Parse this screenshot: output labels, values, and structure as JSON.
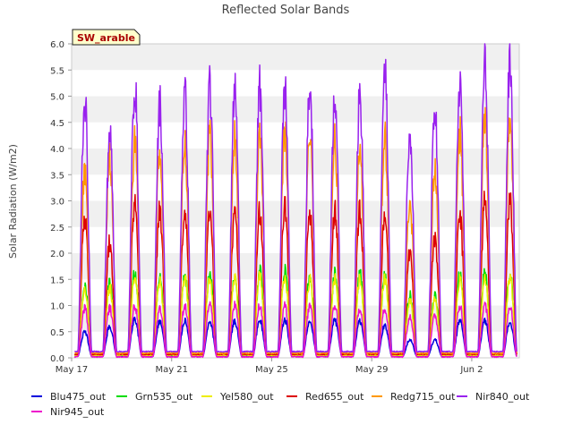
{
  "chart_data": {
    "type": "line",
    "title": "Reflected Solar Bands",
    "badge": "SW_arable",
    "ylabel": "Solar Radiation (W/m2)",
    "xlabel": "",
    "ylim": [
      0,
      6
    ],
    "yticks": [
      "0.0",
      "0.5",
      "1.0",
      "1.5",
      "2.0",
      "2.5",
      "3.0",
      "3.5",
      "4.0",
      "4.5",
      "5.0",
      "5.5",
      "6.0"
    ],
    "xticks": [
      {
        "label": "May 17",
        "day": 0
      },
      {
        "label": "May 21",
        "day": 4
      },
      {
        "label": "May 25",
        "day": 8
      },
      {
        "label": "May 29",
        "day": 12
      },
      {
        "label": "Jun 2",
        "day": 16
      }
    ],
    "x_range_days": [
      0,
      17.9
    ],
    "grid": "horizontal bands",
    "legend_position": "bottom",
    "series": [
      {
        "name": "Blu475_out",
        "color": "#0000dd"
      },
      {
        "name": "Grn535_out",
        "color": "#00dd00"
      },
      {
        "name": "Yel580_out",
        "color": "#eeee00"
      },
      {
        "name": "Red655_out",
        "color": "#dd0000"
      },
      {
        "name": "Redg715_out",
        "color": "#ff9900"
      },
      {
        "name": "Nir840_out",
        "color": "#9922ee"
      },
      {
        "name": "Nir945_out",
        "color": "#ee11cc"
      }
    ],
    "daily_peaks": {
      "days": [
        0.5,
        1.5,
        2.5,
        3.5,
        4.5,
        5.5,
        6.5,
        7.5,
        8.5,
        9.5,
        10.5,
        11.5,
        12.5,
        13.5,
        14.5,
        15.5,
        16.5
      ],
      "Blu475_out": [
        0.5,
        0.6,
        0.75,
        0.7,
        0.72,
        0.7,
        0.7,
        0.72,
        0.72,
        0.72,
        0.72,
        0.7,
        0.62,
        0.35,
        0.35,
        0.7,
        0.7
      ],
      "Grn535_out": [
        1.4,
        1.45,
        1.65,
        1.55,
        1.6,
        1.6,
        1.6,
        1.65,
        1.7,
        1.6,
        1.6,
        1.6,
        1.6,
        1.2,
        1.2,
        1.6,
        1.65
      ],
      "Yel580_out": [
        1.3,
        1.35,
        1.55,
        1.45,
        1.5,
        1.5,
        1.5,
        1.55,
        1.55,
        1.5,
        1.5,
        1.5,
        1.5,
        1.1,
        1.1,
        1.5,
        1.55
      ],
      "Red655_out": [
        2.7,
        2.2,
        3.0,
        2.8,
        2.8,
        2.8,
        2.8,
        2.8,
        2.9,
        2.8,
        2.8,
        2.8,
        2.8,
        2.0,
        2.3,
        2.7,
        3.0
      ],
      "Redg715_out": [
        3.5,
        3.85,
        4.1,
        4.0,
        4.1,
        4.2,
        4.2,
        4.3,
        4.3,
        4.4,
        4.15,
        4.0,
        4.25,
        3.0,
        3.6,
        4.3,
        4.6
      ],
      "Nir840_out": [
        4.95,
        4.3,
        5.25,
        4.85,
        5.05,
        5.15,
        5.15,
        5.15,
        5.15,
        5.2,
        5.1,
        5.0,
        5.45,
        4.4,
        4.7,
        5.3,
        5.6
      ],
      "Nir945_out": [
        0.95,
        0.95,
        1.0,
        0.95,
        1.0,
        1.0,
        1.0,
        1.0,
        1.0,
        1.0,
        1.0,
        0.95,
        0.95,
        0.8,
        0.8,
        1.0,
        1.0
      ]
    }
  }
}
